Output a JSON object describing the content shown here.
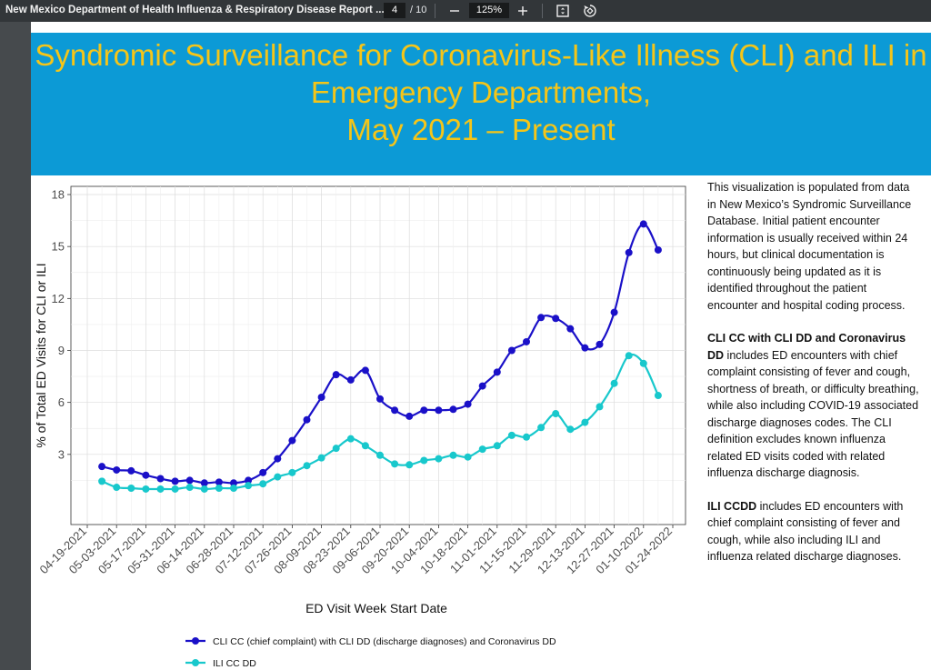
{
  "toolbar": {
    "document_title": "New Mexico Department of Health Influenza & Respiratory Disease Report ...",
    "current_page": "4",
    "total_pages": "/ 10",
    "zoom": "125%",
    "zoom_out_label": "−",
    "zoom_in_label": "+",
    "icons": [
      "minus-icon",
      "plus-icon",
      "fit-page-icon",
      "rotate-icon"
    ]
  },
  "slide": {
    "title_line1": "Syndromic Surveillance for Coronavirus-Like Illness (CLI) and ILI in",
    "title_line2": "Emergency Departments,",
    "title_line3": "May 2021 – Present",
    "banner_color": "#0c9ad6",
    "title_color": "#f5c518",
    "info_paragraph1": "This visualization is populated from data in New Mexico’s Syndromic Surveillance Database. Initial patient encounter information is usually received within 24 hours, but clinical documentation is continuously being updated as it is identified throughout the patient encounter and hospital coding process.",
    "info_cli_bold": "CLI CC with CLI DD and Coronavirus DD",
    "info_cli_rest": " includes ED encounters with chief complaint consisting of fever and cough, shortness of breath, or difficulty breathing, while also including COVID-19 associated discharge diagnoses codes. The CLI definition excludes known influenza related ED visits coded with related influenza discharge diagnosis.",
    "info_ili_bold": "ILI CCDD",
    "info_ili_rest": " includes ED encounters with chief complaint consisting of fever and cough, while also including ILI and influenza related discharge diagnoses."
  },
  "chart_data": {
    "type": "line",
    "xlabel": "ED Visit Week Start Date",
    "ylabel": "% of Total ED Visits for CLI or ILI",
    "ylim": [
      0,
      18
    ],
    "yticks": [
      3,
      6,
      9,
      12,
      15,
      18
    ],
    "tick_labels": [
      "04-19-2021",
      "05-03-2021",
      "05-17-2021",
      "05-31-2021",
      "06-14-2021",
      "06-28-2021",
      "07-12-2021",
      "07-26-2021",
      "08-09-2021",
      "08-23-2021",
      "09-06-2021",
      "09-20-2021",
      "10-04-2021",
      "10-18-2021",
      "11-01-2021",
      "11-15-2021",
      "11-29-2021",
      "12-13-2021",
      "12-27-2021",
      "01-10-2022",
      "01-24-2022"
    ],
    "x": [
      "2021-04-26",
      "2021-05-03",
      "2021-05-10",
      "2021-05-17",
      "2021-05-24",
      "2021-05-31",
      "2021-06-07",
      "2021-06-14",
      "2021-06-21",
      "2021-06-28",
      "2021-07-05",
      "2021-07-12",
      "2021-07-19",
      "2021-07-26",
      "2021-08-02",
      "2021-08-09",
      "2021-08-16",
      "2021-08-23",
      "2021-08-30",
      "2021-09-06",
      "2021-09-13",
      "2021-09-20",
      "2021-09-27",
      "2021-10-04",
      "2021-10-11",
      "2021-10-18",
      "2021-10-25",
      "2021-11-01",
      "2021-11-08",
      "2021-11-15",
      "2021-11-22",
      "2021-11-29",
      "2021-12-06",
      "2021-12-13",
      "2021-12-20",
      "2021-12-27",
      "2022-01-03",
      "2022-01-10",
      "2022-01-17"
    ],
    "grid": true,
    "legend_position": "bottom",
    "series": [
      {
        "name": "CLI CC (chief complaint) with CLI DD (discharge diagnoses) and Coronavirus DD",
        "color": "#1a10c8",
        "values": [
          2.3,
          2.1,
          2.05,
          1.8,
          1.6,
          1.45,
          1.5,
          1.35,
          1.4,
          1.35,
          1.5,
          1.95,
          2.75,
          3.8,
          5.0,
          6.3,
          7.6,
          7.3,
          7.85,
          6.2,
          5.55,
          5.2,
          5.55,
          5.55,
          5.6,
          5.9,
          6.95,
          7.75,
          9.0,
          9.5,
          10.9,
          10.85,
          10.25,
          9.15,
          9.35,
          11.2,
          14.65,
          16.3,
          14.8
        ]
      },
      {
        "name": "ILI CC DD",
        "color": "#18c8cc",
        "values": [
          1.45,
          1.1,
          1.05,
          1.0,
          1.0,
          1.0,
          1.1,
          1.0,
          1.05,
          1.05,
          1.2,
          1.3,
          1.7,
          1.95,
          2.35,
          2.8,
          3.35,
          3.9,
          3.5,
          2.95,
          2.45,
          2.4,
          2.65,
          2.75,
          2.95,
          2.85,
          3.3,
          3.5,
          4.1,
          4.0,
          4.55,
          5.35,
          4.45,
          4.85,
          5.75,
          7.1,
          8.7,
          8.25,
          6.4
        ]
      }
    ]
  }
}
